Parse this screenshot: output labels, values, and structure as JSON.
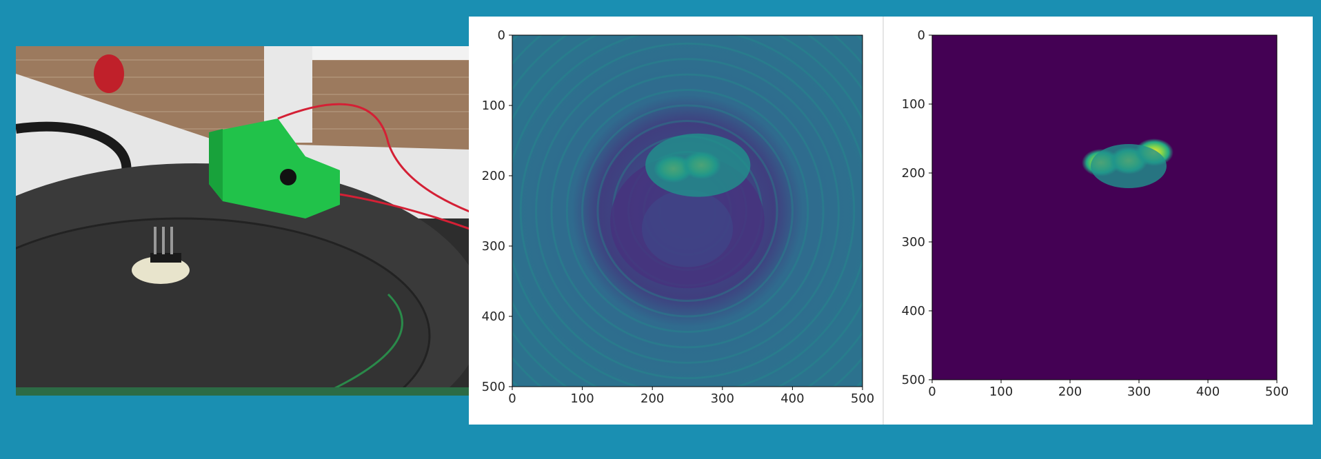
{
  "colors": {
    "background": "#1a8fb2",
    "panel": "#ffffff",
    "viridis_low": "#440154",
    "viridis_mid": "#21918c",
    "viridis_high": "#fde725"
  },
  "photo": {
    "description_icon": "photo-icon"
  },
  "chart_data": [
    {
      "type": "heatmap",
      "title": "",
      "xlabel": "",
      "ylabel": "",
      "xlim": [
        0,
        500
      ],
      "ylim": [
        500,
        0
      ],
      "colormap": "viridis",
      "x_ticks": [
        "0",
        "100",
        "200",
        "300",
        "400",
        "500"
      ],
      "y_ticks": [
        "0",
        "100",
        "200",
        "300",
        "400",
        "500"
      ],
      "features": [
        {
          "name": "hot-spot-1",
          "cx": 230,
          "cy": 190,
          "value": 1.0
        },
        {
          "name": "hot-spot-2",
          "cx": 270,
          "cy": 185,
          "value": 0.95
        },
        {
          "name": "hot-region",
          "cx": 265,
          "cy": 185,
          "value": 0.7
        },
        {
          "name": "low-ring",
          "cx": 250,
          "cy": 270,
          "value": 0.05
        }
      ]
    },
    {
      "type": "heatmap",
      "title": "",
      "xlabel": "",
      "ylabel": "",
      "xlim": [
        0,
        500
      ],
      "ylim": [
        500,
        0
      ],
      "colormap": "viridis",
      "x_ticks": [
        "0",
        "100",
        "200",
        "300",
        "400",
        "500"
      ],
      "y_ticks": [
        "0",
        "100",
        "200",
        "300",
        "400",
        "500"
      ],
      "features": [
        {
          "name": "hot-spot-1",
          "cx": 245,
          "cy": 185,
          "value": 1.0
        },
        {
          "name": "hot-spot-2",
          "cx": 285,
          "cy": 182,
          "value": 0.95
        },
        {
          "name": "hot-spot-3",
          "cx": 322,
          "cy": 170,
          "value": 0.9
        },
        {
          "name": "hot-region",
          "cx": 285,
          "cy": 190,
          "value": 0.45
        }
      ]
    }
  ]
}
